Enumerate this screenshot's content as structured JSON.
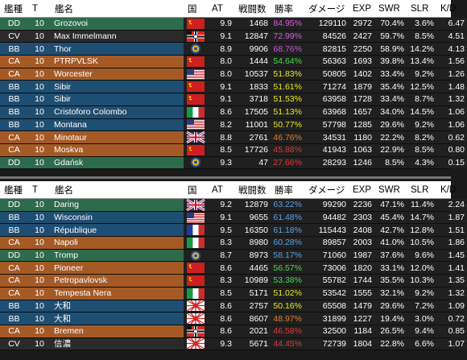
{
  "columns": [
    "艦種",
    "T",
    "艦名",
    "国",
    "AT",
    "戦闘数",
    "勝率",
    "ダメージ",
    "EXP",
    "SWR",
    "SLR",
    "K/D"
  ],
  "class_colors": {
    "DD": "#2e6b4d",
    "CV": "#2a2a2a",
    "BB": "#1f4e73",
    "CA": "#a55a26"
  },
  "top_rows": [
    {
      "cls": "DD",
      "tier": "10",
      "name": "Grozovoi",
      "flag": "ussr",
      "at": "9.9",
      "battles": "1468",
      "wr": "84.95%",
      "wr_color": "#e05ae0",
      "dmg": "129110",
      "exp": "2972",
      "swr": "70.4%",
      "slr": "3.6%",
      "kd": "6.47"
    },
    {
      "cls": "CV",
      "tier": "10",
      "name": "Max Immelmann",
      "flag": "kriegsmarine",
      "at": "9.1",
      "battles": "12847",
      "wr": "72.99%",
      "wr_color": "#e05ae0",
      "dmg": "84526",
      "exp": "2427",
      "swr": "59.7%",
      "slr": "8.5%",
      "kd": "4.51"
    },
    {
      "cls": "BB",
      "tier": "10",
      "name": "Thor",
      "flag": "roundel",
      "at": "8.9",
      "battles": "9906",
      "wr": "68.76%",
      "wr_color": "#c05ad8",
      "dmg": "82815",
      "exp": "2250",
      "swr": "58.9%",
      "slr": "14.2%",
      "kd": "4.13"
    },
    {
      "cls": "CA",
      "tier": "10",
      "name": "PTRPVLSK",
      "flag": "ussr",
      "at": "8.0",
      "battles": "1444",
      "wr": "54.64%",
      "wr_color": "#4cd84c",
      "dmg": "56363",
      "exp": "1693",
      "swr": "39.8%",
      "slr": "13.4%",
      "kd": "1.56"
    },
    {
      "cls": "CA",
      "tier": "10",
      "name": "Worcester",
      "flag": "usa",
      "at": "8.0",
      "battles": "10537",
      "wr": "51.83%",
      "wr_color": "#e8e820",
      "dmg": "50805",
      "exp": "1402",
      "swr": "33.4%",
      "slr": "9.2%",
      "kd": "1.26"
    },
    {
      "cls": "BB",
      "tier": "10",
      "name": "Sibir",
      "flag": "ussr",
      "at": "9.1",
      "battles": "1833",
      "wr": "51.61%",
      "wr_color": "#e8e820",
      "dmg": "71274",
      "exp": "1879",
      "swr": "35.4%",
      "slr": "12.5%",
      "kd": "1.48"
    },
    {
      "cls": "BB",
      "tier": "10",
      "name": "Sibir",
      "flag": "ussr",
      "at": "9.1",
      "battles": "3718",
      "wr": "51.53%",
      "wr_color": "#e8e820",
      "dmg": "63958",
      "exp": "1728",
      "swr": "33.4%",
      "slr": "8.7%",
      "kd": "1.32"
    },
    {
      "cls": "BB",
      "tier": "10",
      "name": "Cristoforo Colombo",
      "flag": "italy",
      "at": "8.6",
      "battles": "17505",
      "wr": "51.13%",
      "wr_color": "#e8e820",
      "dmg": "63968",
      "exp": "1657",
      "swr": "34.0%",
      "slr": "14.5%",
      "kd": "1.06"
    },
    {
      "cls": "BB",
      "tier": "10",
      "name": "Montana",
      "flag": "usa",
      "at": "8.2",
      "battles": "11001",
      "wr": "50.77%",
      "wr_color": "#e8e820",
      "dmg": "57798",
      "exp": "1285",
      "swr": "29.6%",
      "slr": "9.2%",
      "kd": "1.06"
    },
    {
      "cls": "CA",
      "tier": "10",
      "name": "Minotaur",
      "flag": "uk",
      "at": "8.8",
      "battles": "2761",
      "wr": "46.76%",
      "wr_color": "#e08030",
      "dmg": "34531",
      "exp": "1180",
      "swr": "22.2%",
      "slr": "8.2%",
      "kd": "0.62"
    },
    {
      "cls": "CA",
      "tier": "10",
      "name": "Moskva",
      "flag": "ussr",
      "at": "8.5",
      "battles": "17726",
      "wr": "45.88%",
      "wr_color": "#e03838",
      "dmg": "41943",
      "exp": "1063",
      "swr": "22.9%",
      "slr": "8.5%",
      "kd": "0.80"
    },
    {
      "cls": "DD",
      "tier": "10",
      "name": "Gdańsk",
      "flag": "roundel",
      "at": "9.3",
      "battles": "47",
      "wr": "27.66%",
      "wr_color": "#e03838",
      "dmg": "28293",
      "exp": "1246",
      "swr": "8.5%",
      "slr": "4.3%",
      "kd": "0.15"
    }
  ],
  "bottom_rows": [
    {
      "cls": "DD",
      "tier": "10",
      "name": "Daring",
      "flag": "uk",
      "at": "9.2",
      "battles": "12879",
      "wr": "63.22%",
      "wr_color": "#58a0e8",
      "dmg": "99290",
      "exp": "2236",
      "swr": "47.1%",
      "slr": "11.4%",
      "kd": "2.24"
    },
    {
      "cls": "BB",
      "tier": "10",
      "name": "Wisconsin",
      "flag": "usa",
      "at": "9.1",
      "battles": "9655",
      "wr": "61.48%",
      "wr_color": "#58a0e8",
      "dmg": "94482",
      "exp": "2303",
      "swr": "45.4%",
      "slr": "14.7%",
      "kd": "1.87"
    },
    {
      "cls": "BB",
      "tier": "10",
      "name": "République",
      "flag": "france",
      "at": "9.5",
      "battles": "16350",
      "wr": "61.18%",
      "wr_color": "#58a0e8",
      "dmg": "115443",
      "exp": "2408",
      "swr": "42.7%",
      "slr": "12.8%",
      "kd": "1.51"
    },
    {
      "cls": "CA",
      "tier": "10",
      "name": "Napoli",
      "flag": "italy",
      "at": "8.3",
      "battles": "8980",
      "wr": "60.28%",
      "wr_color": "#58a0e8",
      "dmg": "89857",
      "exp": "2003",
      "swr": "41.0%",
      "slr": "10.5%",
      "kd": "1.86"
    },
    {
      "cls": "DD",
      "tier": "10",
      "name": "Tromp",
      "flag": "roundel",
      "at": "8.7",
      "battles": "8973",
      "wr": "58.17%",
      "wr_color": "#58a0e8",
      "dmg": "71060",
      "exp": "1987",
      "swr": "37.6%",
      "slr": "9.6%",
      "kd": "1.45"
    },
    {
      "cls": "CA",
      "tier": "10",
      "name": "Pioneer",
      "flag": "ussr",
      "at": "8.6",
      "battles": "4465",
      "wr": "56.57%",
      "wr_color": "#4cd84c",
      "dmg": "73006",
      "exp": "1820",
      "swr": "33.1%",
      "slr": "12.0%",
      "kd": "1.41"
    },
    {
      "cls": "CA",
      "tier": "10",
      "name": "Petropavlovsk",
      "flag": "ussr",
      "at": "8.3",
      "battles": "10989",
      "wr": "53.38%",
      "wr_color": "#4cd84c",
      "dmg": "55782",
      "exp": "1744",
      "swr": "35.5%",
      "slr": "10.3%",
      "kd": "1.35"
    },
    {
      "cls": "CA",
      "tier": "10",
      "name": "Tempesta Nera",
      "flag": "italy",
      "at": "8.5",
      "battles": "5171",
      "wr": "51.02%",
      "wr_color": "#e8e820",
      "dmg": "53542",
      "exp": "1555",
      "swr": "32.1%",
      "slr": "9.2%",
      "kd": "1.32"
    },
    {
      "cls": "BB",
      "tier": "10",
      "name": "大和",
      "flag": "japan",
      "at": "8.6",
      "battles": "2757",
      "wr": "50.16%",
      "wr_color": "#e8e820",
      "dmg": "65508",
      "exp": "1479",
      "swr": "29.6%",
      "slr": "7.2%",
      "kd": "1.09"
    },
    {
      "cls": "BB",
      "tier": "10",
      "name": "大和",
      "flag": "japan",
      "at": "8.6",
      "battles": "8607",
      "wr": "48.97%",
      "wr_color": "#e08030",
      "dmg": "31899",
      "exp": "1227",
      "swr": "19.4%",
      "slr": "3.0%",
      "kd": "0.72"
    },
    {
      "cls": "CA",
      "tier": "10",
      "name": "Bremen",
      "flag": "kriegsmarine",
      "at": "8.6",
      "battles": "2021",
      "wr": "46.58%",
      "wr_color": "#e03838",
      "dmg": "32500",
      "exp": "1184",
      "swr": "26.5%",
      "slr": "9.4%",
      "kd": "0.85"
    },
    {
      "cls": "CV",
      "tier": "10",
      "name": "信濃",
      "flag": "japan",
      "at": "9.3",
      "battles": "5671",
      "wr": "44.45%",
      "wr_color": "#e03838",
      "dmg": "72739",
      "exp": "1804",
      "swr": "22.8%",
      "slr": "6.6%",
      "kd": "1.07"
    }
  ]
}
